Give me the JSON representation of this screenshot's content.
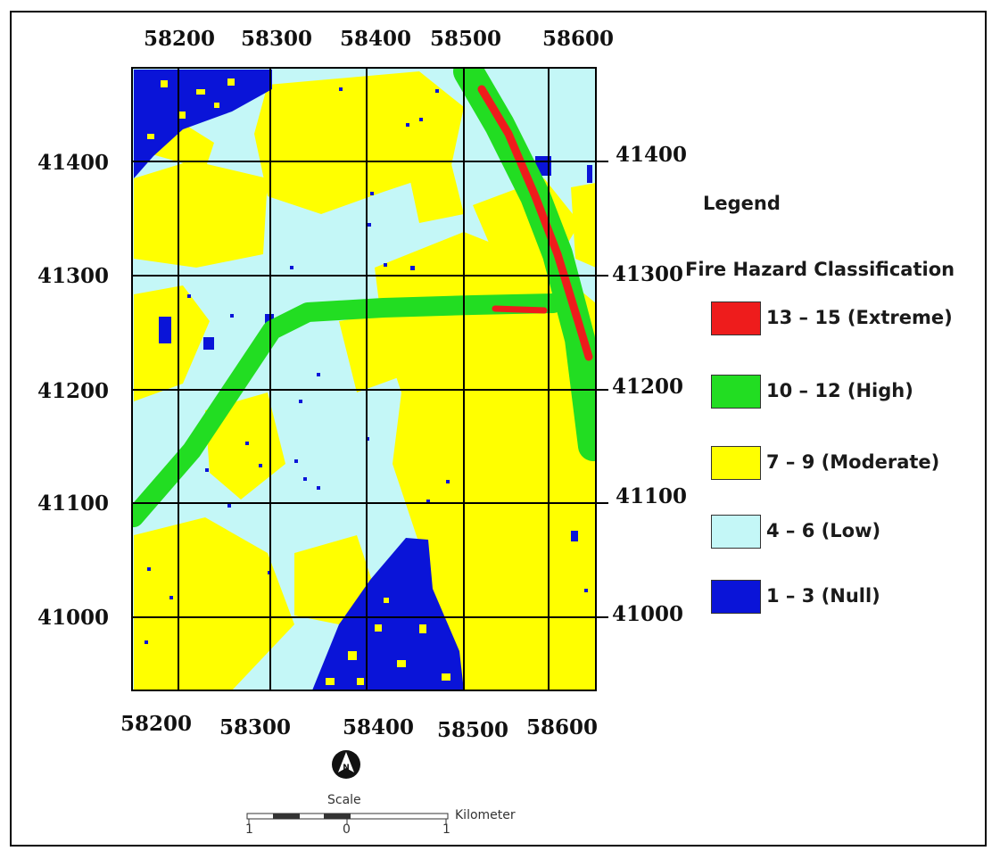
{
  "map": {
    "top_ticks": [
      "58200",
      "58300",
      "58400",
      "58500",
      "58600"
    ],
    "bottom_ticks": [
      "58200",
      "58300",
      "58400",
      "58500",
      "58600"
    ],
    "left_ticks": [
      "41400",
      "41300",
      "41200",
      "41100",
      "41000"
    ],
    "right_ticks": [
      "41400",
      "41300",
      "41200",
      "41100",
      "41000"
    ]
  },
  "legend": {
    "title": "Legend",
    "subtitle": "Fire Hazard Classification",
    "items": [
      {
        "label": "13 – 15 (Extreme)",
        "color": "#ee1c1c"
      },
      {
        "label": "10 – 12 (High)",
        "color": "#22dd22"
      },
      {
        "label": "7 – 9 (Moderate)",
        "color": "#ffff00"
      },
      {
        "label": "4 – 6 (Low)",
        "color": "#c4f7f7"
      },
      {
        "label": "1 – 3 (Null)",
        "color": "#0a14d8"
      }
    ]
  },
  "north_arrow": {
    "label": "N"
  },
  "scale": {
    "title": "Scale",
    "unit": "Kilometer",
    "ticks": [
      "1",
      "0",
      "1"
    ]
  },
  "colors": {
    "extreme": "#ee1c1c",
    "high": "#22dd22",
    "moderate": "#ffff00",
    "low": "#c4f7f7",
    "null": "#0a14d8",
    "grid": "#000000"
  }
}
